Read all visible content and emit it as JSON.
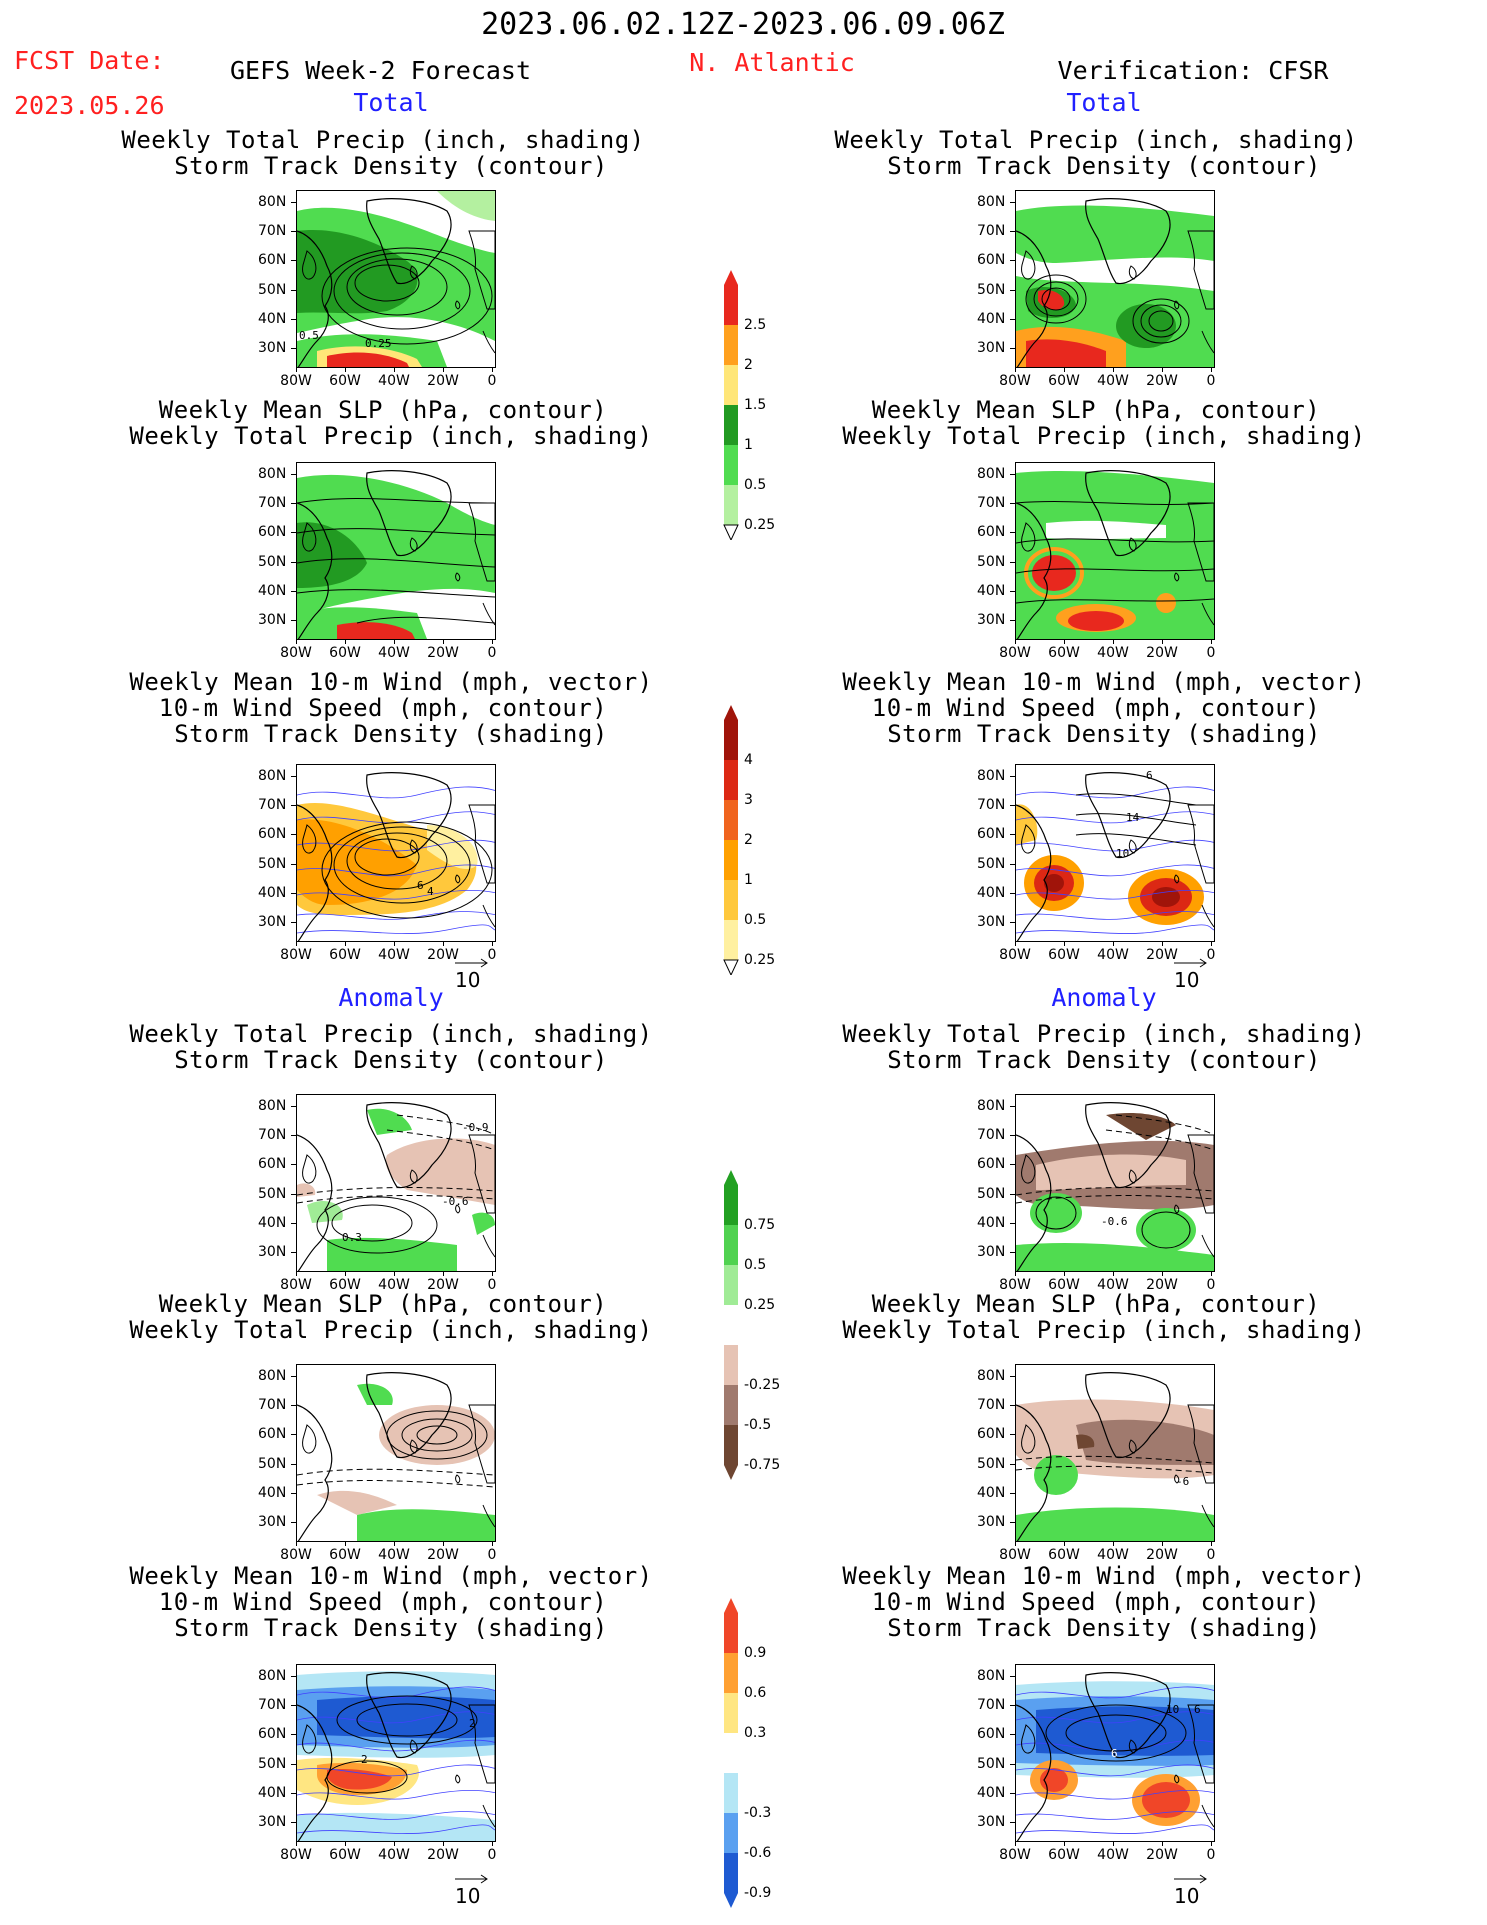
{
  "header": {
    "date_range": "2023.06.02.12Z-2023.06.09.06Z",
    "fcst_label": "FCST Date:",
    "fcst_date": "2023.05.26",
    "forecast_title": "GEFS Week-2 Forecast",
    "region": "N. Atlantic",
    "verification": "Verification: CFSR"
  },
  "sections": {
    "total": "Total",
    "anomaly": "Anomaly"
  },
  "panel_titles": {
    "precip_track": [
      "Weekly Total Precip (inch, shading)",
      "Storm Track Density (contour)"
    ],
    "slp_precip": [
      "Weekly Mean SLP (hPa, contour)",
      "Weekly Total Precip (inch, shading)"
    ],
    "wind_track": [
      "Weekly Mean 10-m Wind (mph, vector)",
      "10-m Wind Speed (mph, contour)",
      "Storm Track Density (shading)"
    ]
  },
  "axes": {
    "lat_ticks": [
      "80N",
      "70N",
      "60N",
      "50N",
      "40N",
      "30N"
    ],
    "lon_ticks": [
      "80W",
      "60W",
      "40W",
      "20W",
      "0"
    ]
  },
  "vector_ref": "10",
  "contour_labels": {
    "fc_precip_track_total": [
      "0.5",
      "0.25"
    ],
    "fc_wind_total": [
      "4",
      "6"
    ],
    "obs_wind_total": [
      "6",
      "10",
      "14"
    ],
    "fc_precip_track_anom": [
      "-0.9",
      "-0.6",
      "0.3"
    ],
    "obs_precip_track_anom": [
      "-0.6"
    ],
    "obs_slp_anom": [
      "-6"
    ],
    "fc_wind_anom": [
      "2",
      "2"
    ],
    "obs_wind_anom": [
      "6",
      "10",
      "6"
    ]
  },
  "colorbars": {
    "precip_total": {
      "labels": [
        "2.5",
        "2",
        "1.5",
        "1",
        "0.5",
        "0.25"
      ],
      "colors": [
        "#e8281e",
        "#ffa01e",
        "#ffe678",
        "#229a22",
        "#50dc50",
        "#b4f0a0"
      ]
    },
    "track_total": {
      "labels": [
        "4",
        "3",
        "2",
        "1",
        "0.5",
        "0.25"
      ],
      "colors": [
        "#a0140a",
        "#dc2814",
        "#f0641e",
        "#ffa000",
        "#ffc83c",
        "#fff0a0"
      ]
    },
    "precip_anom": {
      "labels": [
        "0.75",
        "0.5",
        "0.25",
        "-0.25",
        "-0.5",
        "-0.75"
      ],
      "colors": [
        "#22a022",
        "#50d250",
        "#a0eb96",
        "#ffffff",
        "#e6c3b4",
        "#a07a6e",
        "#6e4632"
      ]
    },
    "track_anom": {
      "labels": [
        "0.9",
        "0.6",
        "0.3",
        "-0.3",
        "-0.6",
        "-0.9"
      ],
      "colors": [
        "#f04628",
        "#ffa032",
        "#ffe682",
        "#ffffff",
        "#b4e6f5",
        "#5aa0f0",
        "#1e5ad2"
      ]
    }
  }
}
